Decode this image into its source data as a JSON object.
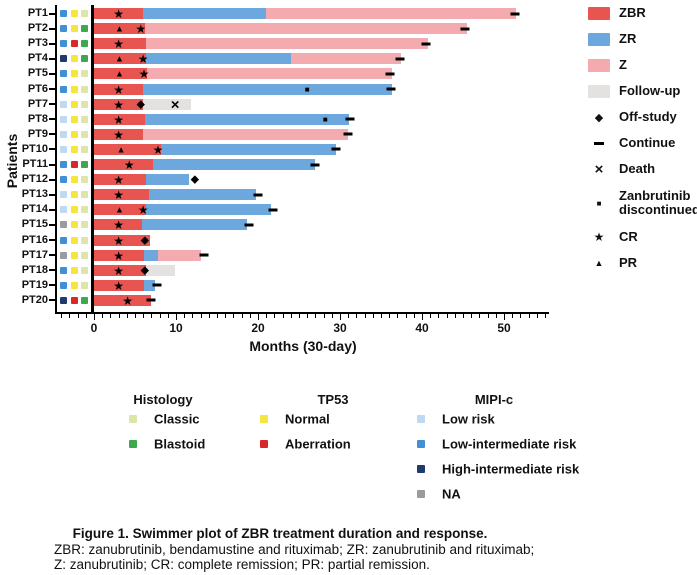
{
  "figure": {
    "caption_title": "Figure 1. Swimmer plot of ZBR treatment duration and response.",
    "caption_line2": "ZBR: zanubrutinib, bendamustine and rituximab; ZR: zanubrutinib and rituximab;",
    "caption_line3": "Z: zanubrutinib; CR: complete remission; PR: partial remission."
  },
  "chart_data": {
    "type": "bar",
    "subtype": "swimmer-plot",
    "xlabel": "Months (30-day)",
    "ylabel": "Patients",
    "x_ticks": [
      0,
      10,
      20,
      30,
      40,
      50
    ],
    "xlim": [
      0,
      55
    ],
    "grid": false,
    "colors": {
      "ZBR": "#E8544F",
      "ZR": "#6CA8DE",
      "Z": "#F3ABB0",
      "Follow-up": "#E4E2E1"
    },
    "attribute_colors": {
      "mipi": {
        "low": "#BED9F1",
        "low_intermediate": "#4190D6",
        "high_intermediate": "#203A6F",
        "na": "#9B9B9B"
      },
      "tp53": {
        "normal": "#F6E53C",
        "aberration": "#D9282B"
      },
      "histology": {
        "classic": "#DDE6A8",
        "blastoid": "#3CA94E"
      }
    },
    "patients": [
      {
        "id": "PT1",
        "mipi": "low_intermediate",
        "tp53": "normal",
        "histology": "classic",
        "segments": [
          {
            "type": "ZBR",
            "start": 0,
            "end": 6
          },
          {
            "type": "ZR",
            "start": 6,
            "end": 21
          },
          {
            "type": "Z",
            "start": 21,
            "end": 51.5
          }
        ],
        "markers": [
          {
            "type": "CR",
            "at": 3
          },
          {
            "type": "continue",
            "at": 51.3
          }
        ]
      },
      {
        "id": "PT2",
        "mipi": "low_intermediate",
        "tp53": "normal",
        "histology": "blastoid",
        "segments": [
          {
            "type": "ZBR",
            "start": 0,
            "end": 6.2
          },
          {
            "type": "Z",
            "start": 6.2,
            "end": 45.5
          }
        ],
        "markers": [
          {
            "type": "PR",
            "at": 3.1
          },
          {
            "type": "CR",
            "at": 5.7
          },
          {
            "type": "continue",
            "at": 45.3
          }
        ]
      },
      {
        "id": "PT3",
        "mipi": "low_intermediate",
        "tp53": "aberration",
        "histology": "blastoid",
        "segments": [
          {
            "type": "ZBR",
            "start": 0,
            "end": 6.4
          },
          {
            "type": "Z",
            "start": 6.4,
            "end": 40.7
          }
        ],
        "markers": [
          {
            "type": "CR",
            "at": 3
          },
          {
            "type": "continue",
            "at": 40.5
          }
        ]
      },
      {
        "id": "PT4",
        "mipi": "high_intermediate",
        "tp53": "normal",
        "histology": "blastoid",
        "segments": [
          {
            "type": "ZBR",
            "start": 0,
            "end": 6.4
          },
          {
            "type": "ZR",
            "start": 6.4,
            "end": 24
          },
          {
            "type": "Z",
            "start": 24,
            "end": 37.5
          }
        ],
        "markers": [
          {
            "type": "PR",
            "at": 3.1
          },
          {
            "type": "CR",
            "at": 6
          },
          {
            "type": "continue",
            "at": 37.3
          }
        ]
      },
      {
        "id": "PT5",
        "mipi": "low_intermediate",
        "tp53": "normal",
        "histology": "classic",
        "segments": [
          {
            "type": "ZBR",
            "start": 0,
            "end": 6.5
          },
          {
            "type": "Z",
            "start": 6.5,
            "end": 36.3
          }
        ],
        "markers": [
          {
            "type": "PR",
            "at": 3.1
          },
          {
            "type": "CR",
            "at": 6.1
          },
          {
            "type": "continue",
            "at": 36.1
          }
        ]
      },
      {
        "id": "PT6",
        "mipi": "low_intermediate",
        "tp53": "normal",
        "histology": "classic",
        "segments": [
          {
            "type": "ZBR",
            "start": 0,
            "end": 6
          },
          {
            "type": "ZR",
            "start": 6,
            "end": 36.4
          }
        ],
        "markers": [
          {
            "type": "CR",
            "at": 3
          },
          {
            "type": "discontinued",
            "at": 26
          },
          {
            "type": "continue",
            "at": 36.2
          }
        ]
      },
      {
        "id": "PT7",
        "mipi": "low",
        "tp53": "normal",
        "histology": "classic",
        "segments": [
          {
            "type": "ZBR",
            "start": 0,
            "end": 6
          },
          {
            "type": "Follow-up",
            "start": 6,
            "end": 11.8
          }
        ],
        "markers": [
          {
            "type": "CR",
            "at": 3
          },
          {
            "type": "off-study",
            "at": 5.7
          },
          {
            "type": "death",
            "at": 9.9
          }
        ]
      },
      {
        "id": "PT8",
        "mipi": "low",
        "tp53": "normal",
        "histology": "classic",
        "segments": [
          {
            "type": "ZBR",
            "start": 0,
            "end": 6.2
          },
          {
            "type": "ZR",
            "start": 6.2,
            "end": 31.1
          }
        ],
        "markers": [
          {
            "type": "CR",
            "at": 3
          },
          {
            "type": "discontinued",
            "at": 28.2
          },
          {
            "type": "continue",
            "at": 31.2
          }
        ]
      },
      {
        "id": "PT9",
        "mipi": "low",
        "tp53": "normal",
        "histology": "classic",
        "segments": [
          {
            "type": "ZBR",
            "start": 0,
            "end": 6
          },
          {
            "type": "Z",
            "start": 6,
            "end": 31
          }
        ],
        "markers": [
          {
            "type": "CR",
            "at": 3
          },
          {
            "type": "continue",
            "at": 31
          }
        ]
      },
      {
        "id": "PT10",
        "mipi": "low",
        "tp53": "normal",
        "histology": "classic",
        "segments": [
          {
            "type": "ZBR",
            "start": 0,
            "end": 8.2
          },
          {
            "type": "ZR",
            "start": 8.2,
            "end": 29.5
          }
        ],
        "markers": [
          {
            "type": "PR",
            "at": 3.3
          },
          {
            "type": "CR",
            "at": 7.8
          },
          {
            "type": "continue",
            "at": 29.5
          }
        ]
      },
      {
        "id": "PT11",
        "mipi": "low_intermediate",
        "tp53": "aberration",
        "histology": "blastoid",
        "segments": [
          {
            "type": "ZBR",
            "start": 0,
            "end": 7.2
          },
          {
            "type": "ZR",
            "start": 7.2,
            "end": 27
          }
        ],
        "markers": [
          {
            "type": "CR",
            "at": 4.3
          },
          {
            "type": "continue",
            "at": 27
          }
        ]
      },
      {
        "id": "PT12",
        "mipi": "low_intermediate",
        "tp53": "normal",
        "histology": "classic",
        "segments": [
          {
            "type": "ZBR",
            "start": 0,
            "end": 6.3
          },
          {
            "type": "ZR",
            "start": 6.3,
            "end": 11.6
          }
        ],
        "markers": [
          {
            "type": "CR",
            "at": 3
          },
          {
            "type": "off-study",
            "at": 12.3
          }
        ]
      },
      {
        "id": "PT13",
        "mipi": "low",
        "tp53": "normal",
        "histology": "classic",
        "segments": [
          {
            "type": "ZBR",
            "start": 0,
            "end": 6.7
          },
          {
            "type": "ZR",
            "start": 6.7,
            "end": 19.8
          }
        ],
        "markers": [
          {
            "type": "CR",
            "at": 3
          },
          {
            "type": "continue",
            "at": 20
          }
        ]
      },
      {
        "id": "PT14",
        "mipi": "low",
        "tp53": "normal",
        "histology": "classic",
        "segments": [
          {
            "type": "ZBR",
            "start": 0,
            "end": 6.4
          },
          {
            "type": "ZR",
            "start": 6.4,
            "end": 21.6
          }
        ],
        "markers": [
          {
            "type": "PR",
            "at": 3.1
          },
          {
            "type": "CR",
            "at": 6
          },
          {
            "type": "continue",
            "at": 21.8
          }
        ]
      },
      {
        "id": "PT15",
        "mipi": "na",
        "tp53": "normal",
        "histology": "classic",
        "segments": [
          {
            "type": "ZBR",
            "start": 0,
            "end": 5.9
          },
          {
            "type": "ZR",
            "start": 5.9,
            "end": 18.7
          }
        ],
        "markers": [
          {
            "type": "CR",
            "at": 3
          },
          {
            "type": "continue",
            "at": 18.9
          }
        ]
      },
      {
        "id": "PT16",
        "mipi": "low_intermediate",
        "tp53": "normal",
        "histology": "classic",
        "segments": [
          {
            "type": "ZBR",
            "start": 0,
            "end": 6.8
          }
        ],
        "markers": [
          {
            "type": "CR",
            "at": 3
          },
          {
            "type": "off-study",
            "at": 6.2
          }
        ]
      },
      {
        "id": "PT17",
        "mipi": "na",
        "tp53": "normal",
        "histology": "classic",
        "segments": [
          {
            "type": "ZBR",
            "start": 0,
            "end": 6.1
          },
          {
            "type": "ZR",
            "start": 6.1,
            "end": 7.8
          },
          {
            "type": "Z",
            "start": 7.8,
            "end": 13
          }
        ],
        "markers": [
          {
            "type": "CR",
            "at": 3
          },
          {
            "type": "continue",
            "at": 13.4
          }
        ]
      },
      {
        "id": "PT18",
        "mipi": "low_intermediate",
        "tp53": "normal",
        "histology": "classic",
        "segments": [
          {
            "type": "ZBR",
            "start": 0,
            "end": 6.4
          },
          {
            "type": "Follow-up",
            "start": 6.4,
            "end": 9.9
          }
        ],
        "markers": [
          {
            "type": "CR",
            "at": 3
          },
          {
            "type": "off-study",
            "at": 6.2
          }
        ]
      },
      {
        "id": "PT19",
        "mipi": "low_intermediate",
        "tp53": "normal",
        "histology": "classic",
        "segments": [
          {
            "type": "ZBR",
            "start": 0,
            "end": 6.1
          },
          {
            "type": "ZR",
            "start": 6.1,
            "end": 7.5
          }
        ],
        "markers": [
          {
            "type": "CR",
            "at": 3
          },
          {
            "type": "continue",
            "at": 7.7
          }
        ]
      },
      {
        "id": "PT20",
        "mipi": "high_intermediate",
        "tp53": "aberration",
        "histology": "blastoid",
        "segments": [
          {
            "type": "ZBR",
            "start": 0,
            "end": 7
          }
        ],
        "markers": [
          {
            "type": "CR",
            "at": 4.1
          },
          {
            "type": "continue",
            "at": 6.9
          }
        ]
      }
    ]
  },
  "legend": {
    "items": [
      {
        "kind": "swatch",
        "color_key": "ZBR",
        "label": "ZBR"
      },
      {
        "kind": "swatch",
        "color_key": "ZR",
        "label": "ZR"
      },
      {
        "kind": "swatch",
        "color_key": "Z",
        "label": "Z"
      },
      {
        "kind": "swatch",
        "color_key": "Follow-up",
        "label": "Follow-up"
      },
      {
        "kind": "marker",
        "marker": "off-study",
        "label": "Off-study"
      },
      {
        "kind": "marker",
        "marker": "continue",
        "label": "Continue"
      },
      {
        "kind": "marker",
        "marker": "death",
        "label": "Death"
      },
      {
        "kind": "marker",
        "marker": "discontinued",
        "label": "Zanbrutinib discontinued"
      },
      {
        "kind": "marker",
        "marker": "CR",
        "label": "CR"
      },
      {
        "kind": "marker",
        "marker": "PR",
        "label": "PR"
      }
    ]
  },
  "bottom_legend": {
    "groups": [
      {
        "title": "Histology",
        "attr": "histology",
        "items": [
          {
            "key": "classic",
            "label": "Classic"
          },
          {
            "key": "blastoid",
            "label": "Blastoid"
          }
        ]
      },
      {
        "title": "TP53",
        "attr": "tp53",
        "items": [
          {
            "key": "normal",
            "label": "Normal"
          },
          {
            "key": "aberration",
            "label": "Aberration"
          }
        ]
      },
      {
        "title": "MIPI-c",
        "attr": "mipi",
        "items": [
          {
            "key": "low",
            "label": "Low risk"
          },
          {
            "key": "low_intermediate",
            "label": "Low-intermediate risk"
          },
          {
            "key": "high_intermediate",
            "label": "High-intermediate risk"
          },
          {
            "key": "na",
            "label": "NA"
          }
        ]
      }
    ]
  }
}
